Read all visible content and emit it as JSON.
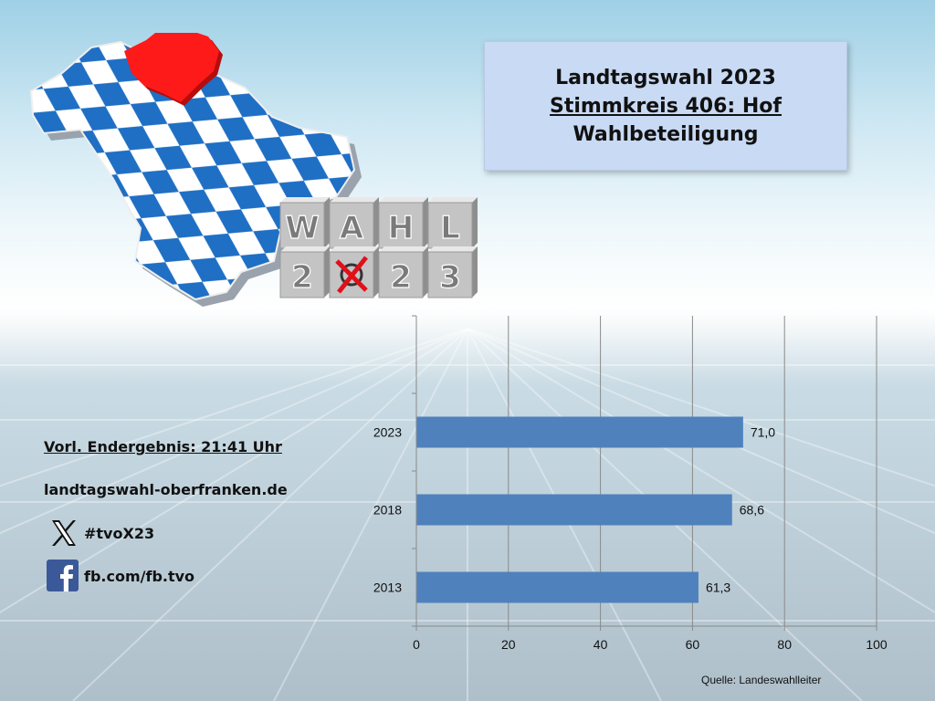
{
  "title": {
    "line1": "Landtagswahl 2023",
    "line2": "Stimmkreis 406: Hof",
    "line3": "Wahlbeteiligung"
  },
  "info": {
    "result_time": "Vorl. Endergebnis: 21:41 Uhr",
    "website": "landtagswahl-oberfranken.de",
    "x_handle": "#tvoX23",
    "facebook": "fb.com/fb.tvo"
  },
  "logo_blocks": {
    "row1": [
      "W",
      "A",
      "H",
      "L"
    ],
    "row2": [
      "2",
      "",
      "2",
      "3"
    ]
  },
  "colors": {
    "bar": "#4f81bd",
    "map_highlight": "#ff1a1a",
    "map_diamond": "#1f6fc4",
    "title_box": "#c9daf4",
    "facebook": "#3b5998"
  },
  "chart_data": {
    "type": "bar",
    "orientation": "horizontal",
    "categories": [
      "2023",
      "2018",
      "2013"
    ],
    "values": [
      71.0,
      68.6,
      61.3
    ],
    "value_labels": [
      "71,0",
      "68,6",
      "61,3"
    ],
    "xlim": [
      0,
      100
    ],
    "xticks": [
      0,
      20,
      40,
      60,
      80,
      100
    ],
    "grid": "vertical",
    "source": "Quelle: Landeswahlleiter"
  }
}
